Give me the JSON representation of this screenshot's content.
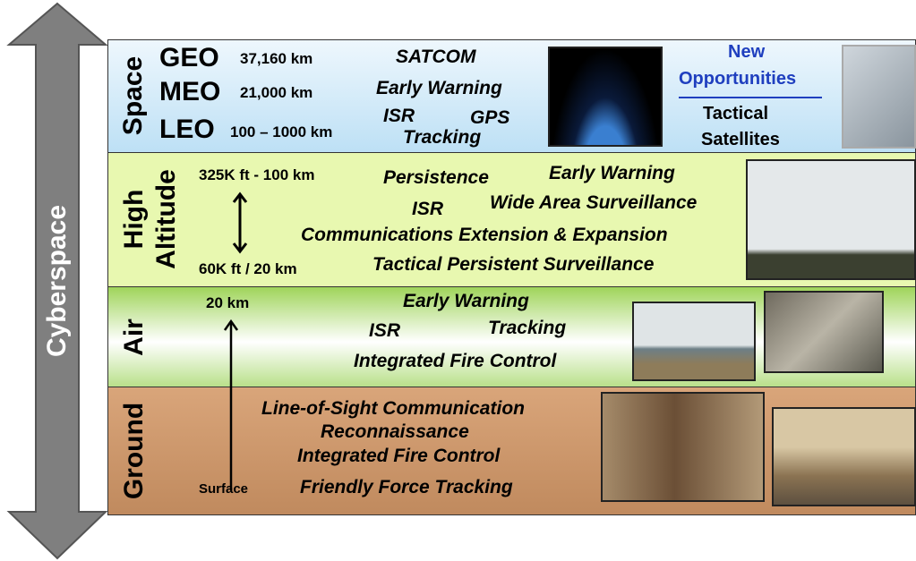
{
  "cyberspace": "Cyberspace",
  "space": {
    "label": "Space",
    "orbits": [
      {
        "name": "GEO",
        "altitude": "37,160 km"
      },
      {
        "name": "MEO",
        "altitude": "21,000 km"
      },
      {
        "name": "LEO",
        "altitude": "100 – 1000 km"
      }
    ],
    "missions": [
      "SATCOM",
      "Early Warning",
      "ISR",
      "GPS",
      "Tracking"
    ],
    "new_opportunities": [
      "New",
      "Opportunities"
    ],
    "tactical_satellites": [
      "Tactical",
      "Satellites"
    ]
  },
  "high_altitude": {
    "label": [
      "High",
      "Altitude"
    ],
    "top": "325K ft - 100 km",
    "bottom": "60K ft / 20 km",
    "missions": [
      "Persistence",
      "Early Warning",
      "ISR",
      "Wide Area Surveillance",
      "Communications Extension & Expansion",
      "Tactical Persistent Surveillance"
    ]
  },
  "air": {
    "label": "Air",
    "top": "20 km",
    "missions": [
      "Early Warning",
      "ISR",
      "Tracking",
      "Integrated Fire Control"
    ]
  },
  "ground": {
    "label": "Ground",
    "bottom": "Surface",
    "missions": [
      "Line-of-Sight Communication",
      "Reconnaissance",
      "Integrated Fire Control",
      "Friendly Force Tracking"
    ]
  }
}
